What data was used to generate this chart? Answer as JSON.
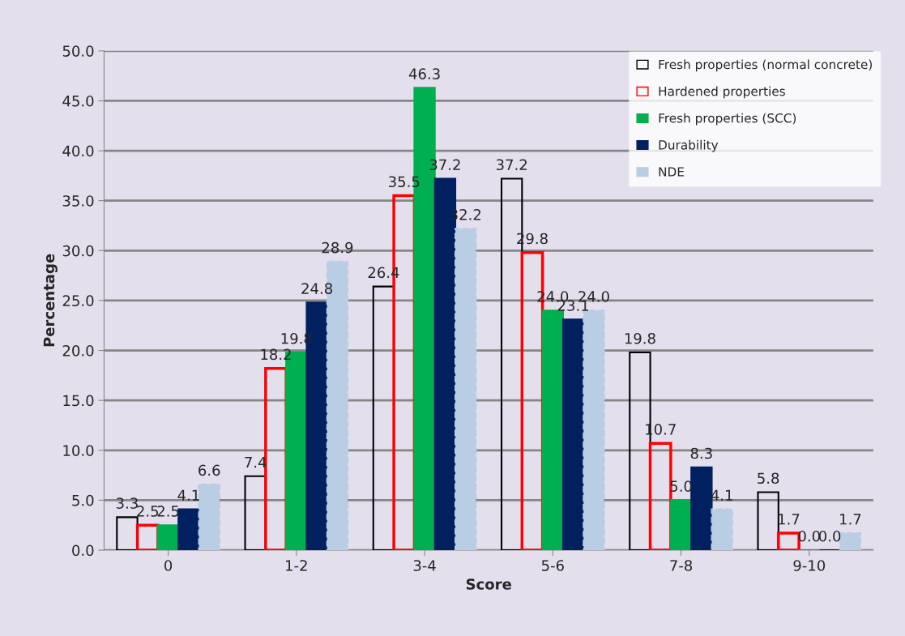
{
  "chart_data": {
    "type": "bar",
    "xlabel": "Score",
    "ylabel": "Percentage",
    "categories": [
      "0",
      "1-2",
      "3-4",
      "5-6",
      "7-8",
      "9-10"
    ],
    "series": [
      {
        "name": "Fresh properties (normal concrete)",
        "color": "#000000",
        "values": [
          3.3,
          7.4,
          26.4,
          37.2,
          19.8,
          5.8
        ],
        "value_labels": [
          "3.3",
          "7.4",
          "26.4",
          "37.2",
          "19.8",
          "5.8"
        ]
      },
      {
        "name": "Hardened properties",
        "color": "#ff0000",
        "values": [
          2.5,
          18.2,
          35.5,
          29.8,
          10.7,
          1.7
        ],
        "value_labels": [
          "2.5",
          "18.2",
          "35.5",
          "29.8",
          "10.7",
          "1.7"
        ]
      },
      {
        "name": "Fresh properties (SCC)",
        "color": "#00b050",
        "values": [
          2.5,
          19.8,
          46.3,
          24.0,
          5.0,
          0.0
        ],
        "value_labels": [
          "2.5",
          "19.8",
          "46.3",
          "24.0",
          "5.0",
          "0.0"
        ]
      },
      {
        "name": "Durability",
        "color": "#002060",
        "values": [
          4.1,
          24.8,
          37.2,
          23.1,
          8.3,
          0.0
        ],
        "value_labels": [
          "4.1",
          "24.8",
          "37.2",
          "23.1",
          "8.3",
          "0.0"
        ]
      },
      {
        "name": "NDE",
        "color": "#b9cde5",
        "values": [
          6.6,
          28.9,
          32.2,
          24.0,
          4.1,
          1.7
        ],
        "value_labels": [
          "6.6",
          "28.9",
          "32.2",
          "24.0",
          "4.1",
          "1.7"
        ]
      }
    ],
    "ylim": [
      0,
      50
    ],
    "yticks": [
      {
        "value": 0,
        "label": "0.0"
      },
      {
        "value": 5,
        "label": "5.0"
      },
      {
        "value": 10,
        "label": "10.0"
      },
      {
        "value": 15,
        "label": "15.0"
      },
      {
        "value": 20,
        "label": "20.0"
      },
      {
        "value": 25,
        "label": "25.0"
      },
      {
        "value": 30,
        "label": "30.0"
      },
      {
        "value": 35,
        "label": "35.0"
      },
      {
        "value": 40,
        "label": "40.0"
      },
      {
        "value": 45,
        "label": "45.0"
      },
      {
        "value": 50,
        "label": "50.0"
      }
    ],
    "grid": "y",
    "legend": "top right"
  }
}
